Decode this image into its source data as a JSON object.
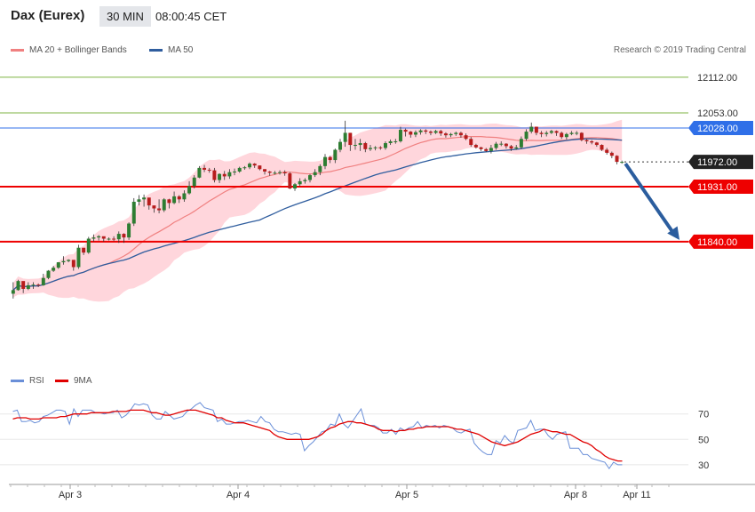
{
  "header": {
    "instrument": "Dax (Eurex)",
    "timeframe": "30 MIN",
    "time": "08:00:45 CET"
  },
  "legend_top": {
    "bollinger": "MA 20 + Bollinger Bands",
    "ma50": "MA 50",
    "credit": "Research © 2019 Trading Central"
  },
  "legend_bottom": {
    "rsi": "RSI",
    "ma9": "9MA"
  },
  "colors": {
    "up": "#2e7d32",
    "down": "#b71c1c",
    "band_fill": "#ffd6dc",
    "ma20": "#f08080",
    "ma50": "#2f5d9e",
    "level_red": "#ee0000",
    "level_green": "#7cb342",
    "current_blue": "#2f6fe8",
    "arrow": "#2b5d9e",
    "rsi": "#6a8fd8",
    "rsi_ma": "#e00000"
  },
  "chart_data": [
    {
      "type": "candlestick",
      "title": "Dax (Eurex) 30 MIN",
      "x_labels": [
        "Apr 3",
        "Apr 4",
        "Apr 5",
        "Apr 8",
        "Apr 11"
      ],
      "ylim": [
        11640,
        12125
      ],
      "levels": [
        {
          "value": 12112.0,
          "label": "12112.00",
          "kind": "resistance"
        },
        {
          "value": 12053.0,
          "label": "12053.00",
          "kind": "resistance"
        },
        {
          "value": 12028.0,
          "label": "12028.00",
          "kind": "current"
        },
        {
          "value": 11972.0,
          "label": "11972.00",
          "kind": "last"
        },
        {
          "value": 11931.0,
          "label": "11931.00",
          "kind": "support"
        },
        {
          "value": 11840.0,
          "label": "11840.00",
          "kind": "support"
        }
      ],
      "close": [
        11760,
        11775,
        11762,
        11768,
        11769,
        11768,
        11780,
        11792,
        11797,
        11806,
        11808,
        11810,
        11798,
        11830,
        11822,
        11845,
        11847,
        11849,
        11845,
        11845,
        11844,
        11853,
        11847,
        11870,
        11906,
        11910,
        11913,
        11900,
        11895,
        11892,
        11910,
        11904,
        11915,
        11910,
        11920,
        11932,
        11946,
        11962,
        11959,
        11958,
        11942,
        11952,
        11948,
        11955,
        11956,
        11962,
        11963,
        11969,
        11966,
        11960,
        11956,
        11954,
        11954,
        11955,
        11953,
        11928,
        11935,
        11940,
        11942,
        11950,
        11955,
        11965,
        11980,
        11975,
        11992,
        12005,
        12020,
        12000,
        12000,
        12003,
        11993,
        11995,
        11996,
        11995,
        12003,
        12006,
        12006,
        12025,
        12022,
        12017,
        12021,
        12024,
        12022,
        12020,
        12023,
        12019,
        12016,
        12018,
        12020,
        12016,
        12010,
        12000,
        11996,
        11993,
        11990,
        11995,
        12002,
        12002,
        11998,
        11994,
        11996,
        12010,
        12022,
        12030,
        12020,
        12018,
        12020,
        12023,
        12020,
        12013,
        12018,
        12020,
        12020,
        12008,
        12006,
        12004,
        12000,
        11992,
        11987,
        11982,
        11972,
        11972
      ],
      "high": [
        11773,
        11777,
        11770,
        11773,
        11773,
        11771,
        11787,
        11793,
        11800,
        11806,
        11816,
        11811,
        11800,
        11835,
        11824,
        11848,
        11852,
        11851,
        11848,
        11847,
        11849,
        11857,
        11854,
        11872,
        11912,
        11917,
        11918,
        11910,
        11897,
        11910,
        11912,
        11911,
        11923,
        11917,
        11925,
        11940,
        11950,
        11965,
        11967,
        11962,
        11962,
        11953,
        11957,
        11960,
        11961,
        11964,
        11965,
        11971,
        11970,
        11966,
        11960,
        11957,
        11957,
        11958,
        11958,
        11955,
        11937,
        11945,
        11945,
        11952,
        11960,
        11968,
        11985,
        11982,
        11994,
        12010,
        12040,
        12020,
        12010,
        12010,
        12005,
        12000,
        11998,
        11998,
        12006,
        12009,
        12010,
        12030,
        12027,
        12023,
        12024,
        12026,
        12026,
        12024,
        12025,
        12025,
        12021,
        12020,
        12022,
        12022,
        12019,
        12013,
        12002,
        11997,
        11995,
        12000,
        12005,
        12006,
        12003,
        12000,
        12000,
        12014,
        12026,
        12037,
        12030,
        12023,
        12023,
        12025,
        12024,
        12022,
        12020,
        12023,
        12023,
        12021,
        12010,
        12008,
        12005,
        12001,
        11995,
        11989,
        11983,
        11974
      ],
      "low": [
        11746,
        11759,
        11755,
        11760,
        11762,
        11765,
        11767,
        11778,
        11790,
        11795,
        11802,
        11806,
        11792,
        11795,
        11818,
        11820,
        11840,
        11842,
        11840,
        11842,
        11841,
        11838,
        11838,
        11843,
        11866,
        11900,
        11898,
        11893,
        11888,
        11887,
        11889,
        11895,
        11902,
        11904,
        11906,
        11918,
        11928,
        11945,
        11955,
        11954,
        11938,
        11937,
        11942,
        11944,
        11950,
        11954,
        11959,
        11960,
        11962,
        11958,
        11951,
        11949,
        11951,
        11951,
        11949,
        11927,
        11924,
        11932,
        11936,
        11938,
        11947,
        11950,
        11960,
        11970,
        11970,
        11988,
        11997,
        11990,
        11992,
        11990,
        11988,
        11990,
        11991,
        11992,
        11992,
        12000,
        12002,
        12004,
        12014,
        12012,
        12013,
        12017,
        12018,
        12016,
        12018,
        12015,
        12012,
        12013,
        12015,
        12012,
        12008,
        11997,
        11994,
        11990,
        11988,
        11986,
        11992,
        11998,
        11994,
        11990,
        11992,
        11993,
        12007,
        12019,
        12016,
        12013,
        12014,
        12018,
        12015,
        12010,
        12009,
        12016,
        12016,
        12006,
        12002,
        12001,
        11997,
        11990,
        11984,
        11978,
        11968,
        11969
      ]
    },
    {
      "type": "line",
      "title": "RSI",
      "ylim": [
        18,
        88
      ],
      "y_ticks": [
        70,
        50,
        30
      ],
      "series": [
        {
          "name": "RSI",
          "values": [
            72,
            73,
            64,
            64,
            65,
            63,
            64,
            68,
            69,
            71,
            73,
            73,
            72,
            62,
            74,
            68,
            73,
            73,
            73,
            71,
            71,
            70,
            71,
            71,
            73,
            67,
            69,
            73,
            78,
            77,
            78,
            77,
            69,
            66,
            66,
            72,
            69,
            66,
            67,
            68,
            72,
            74,
            77,
            79,
            75,
            74,
            73,
            64,
            66,
            62,
            62,
            63,
            64,
            64,
            65,
            64,
            63,
            68,
            64,
            63,
            58,
            56,
            56,
            55,
            54,
            55,
            54,
            41,
            45,
            48,
            52,
            56,
            57,
            62,
            61,
            70,
            62,
            59,
            64,
            69,
            74,
            62,
            61,
            61,
            59,
            55,
            55,
            58,
            54,
            59,
            57,
            59,
            60,
            64,
            59,
            61,
            60,
            61,
            59,
            61,
            60,
            59,
            56,
            55,
            57,
            58,
            47,
            43,
            40,
            38,
            38,
            49,
            47,
            53,
            49,
            47,
            57,
            58,
            59,
            65,
            57,
            58,
            58,
            53,
            50,
            54,
            55,
            56,
            43,
            43,
            43,
            38,
            38,
            35,
            34,
            33,
            32,
            27,
            32,
            30,
            30
          ]
        },
        {
          "name": "9MA",
          "values": [
            66,
            67,
            67,
            67,
            66,
            66,
            66,
            67,
            67,
            67,
            67,
            68,
            68,
            69,
            70,
            70,
            70,
            70,
            71,
            71,
            71,
            71,
            71,
            72,
            72,
            72,
            72,
            73,
            73,
            73,
            73,
            72,
            71,
            71,
            70,
            69,
            69,
            70,
            71,
            72,
            73,
            73,
            73,
            72,
            71,
            70,
            69,
            67,
            67,
            65,
            64,
            63,
            63,
            63,
            62,
            61,
            60,
            59,
            58,
            57,
            54,
            52,
            51,
            50,
            50,
            50,
            50,
            50,
            50,
            51,
            52,
            54,
            57,
            59,
            60,
            62,
            63,
            64,
            64,
            63,
            63,
            62,
            61,
            60,
            58,
            57,
            57,
            57,
            56,
            57,
            57,
            58,
            58,
            59,
            59,
            60,
            60,
            60,
            60,
            60,
            60,
            59,
            58,
            58,
            57,
            56,
            55,
            54,
            52,
            50,
            48,
            47,
            46,
            45,
            46,
            47,
            48,
            50,
            52,
            54,
            55,
            56,
            58,
            57,
            56,
            56,
            55,
            54,
            54,
            52,
            50,
            48,
            47,
            45,
            42,
            40,
            37,
            35,
            34,
            33,
            33
          ]
        }
      ]
    }
  ]
}
